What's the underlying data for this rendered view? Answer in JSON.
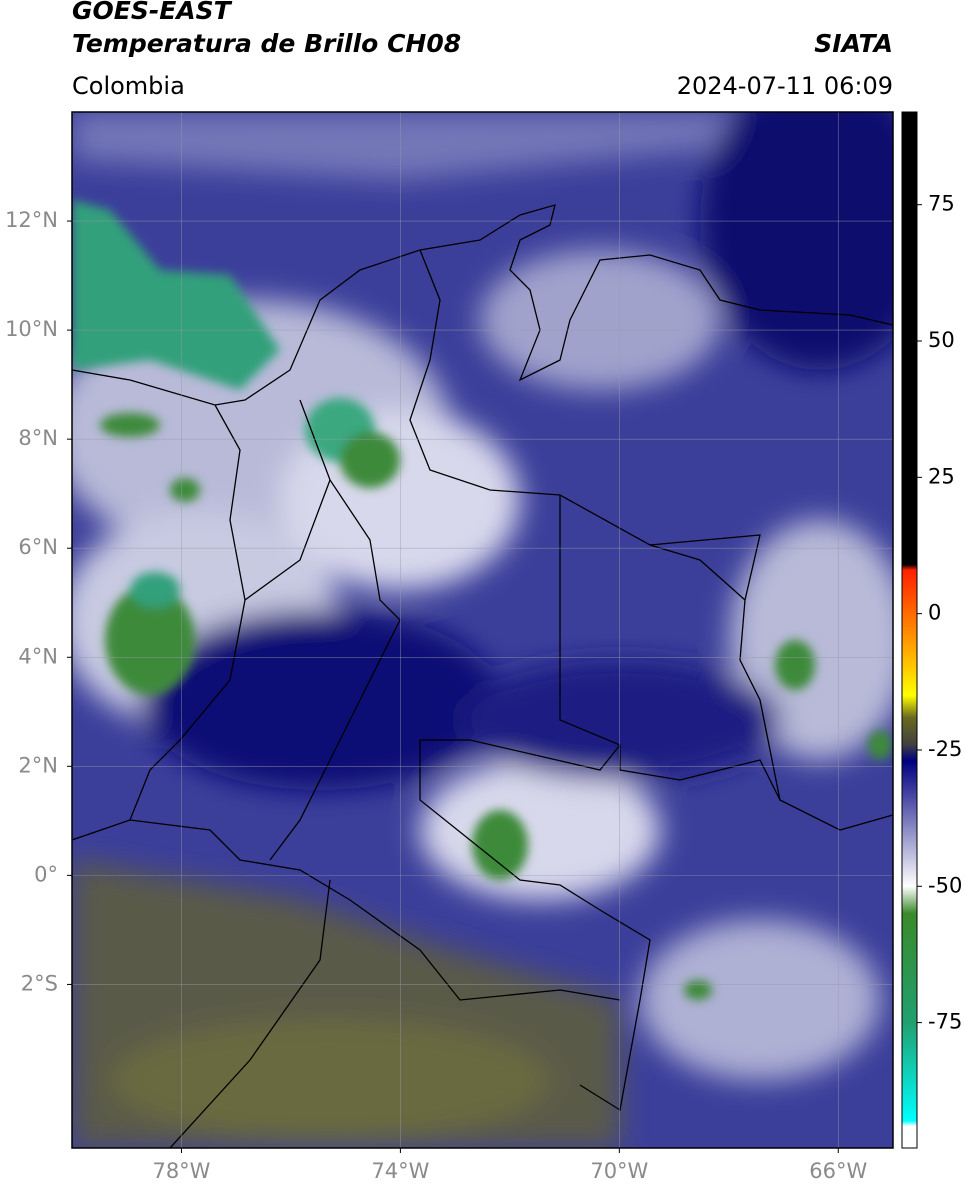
{
  "header": {
    "title": "GOES-EAST",
    "subtitle": "Temperatura de Brillo CH08",
    "source": "SIATA",
    "region": "Colombia",
    "datetime": "2024-07-11 06:09"
  },
  "map": {
    "xlim": [
      -80,
      -65
    ],
    "ylim": [
      -5,
      14
    ],
    "xticks": [
      {
        "value": -78,
        "label": "78°W"
      },
      {
        "value": -74,
        "label": "74°W"
      },
      {
        "value": -70,
        "label": "70°W"
      },
      {
        "value": -66,
        "label": "66°W"
      }
    ],
    "yticks": [
      {
        "value": 12,
        "label": "12°N"
      },
      {
        "value": 10,
        "label": "10°N"
      },
      {
        "value": 8,
        "label": "8°N"
      },
      {
        "value": 6,
        "label": "6°N"
      },
      {
        "value": 4,
        "label": "4°N"
      },
      {
        "value": 2,
        "label": "2°N"
      },
      {
        "value": 0,
        "label": "0°"
      },
      {
        "value": -2,
        "label": "2°S"
      }
    ],
    "grid": true
  },
  "colorbar": {
    "lim": [
      -98,
      92
    ],
    "ticks": [
      75,
      50,
      25,
      0,
      -25,
      -50,
      -75
    ],
    "stops": [
      {
        "value": 92,
        "color": "#000000"
      },
      {
        "value": 9,
        "color": "#000000"
      },
      {
        "value": 8,
        "color": "#ff2000"
      },
      {
        "value": -5,
        "color": "#ff9900"
      },
      {
        "value": -15,
        "color": "#ffff00"
      },
      {
        "value": -19,
        "color": "#6b6b20"
      },
      {
        "value": -24,
        "color": "#404040"
      },
      {
        "value": -27,
        "color": "#000080"
      },
      {
        "value": -50,
        "color": "#ffffff"
      },
      {
        "value": -55,
        "color": "#3a8a2a"
      },
      {
        "value": -75,
        "color": "#20a070"
      },
      {
        "value": -93,
        "color": "#00ffff"
      },
      {
        "value": -94,
        "color": "#ffffff"
      },
      {
        "value": -98,
        "color": "#ffffff"
      }
    ]
  }
}
